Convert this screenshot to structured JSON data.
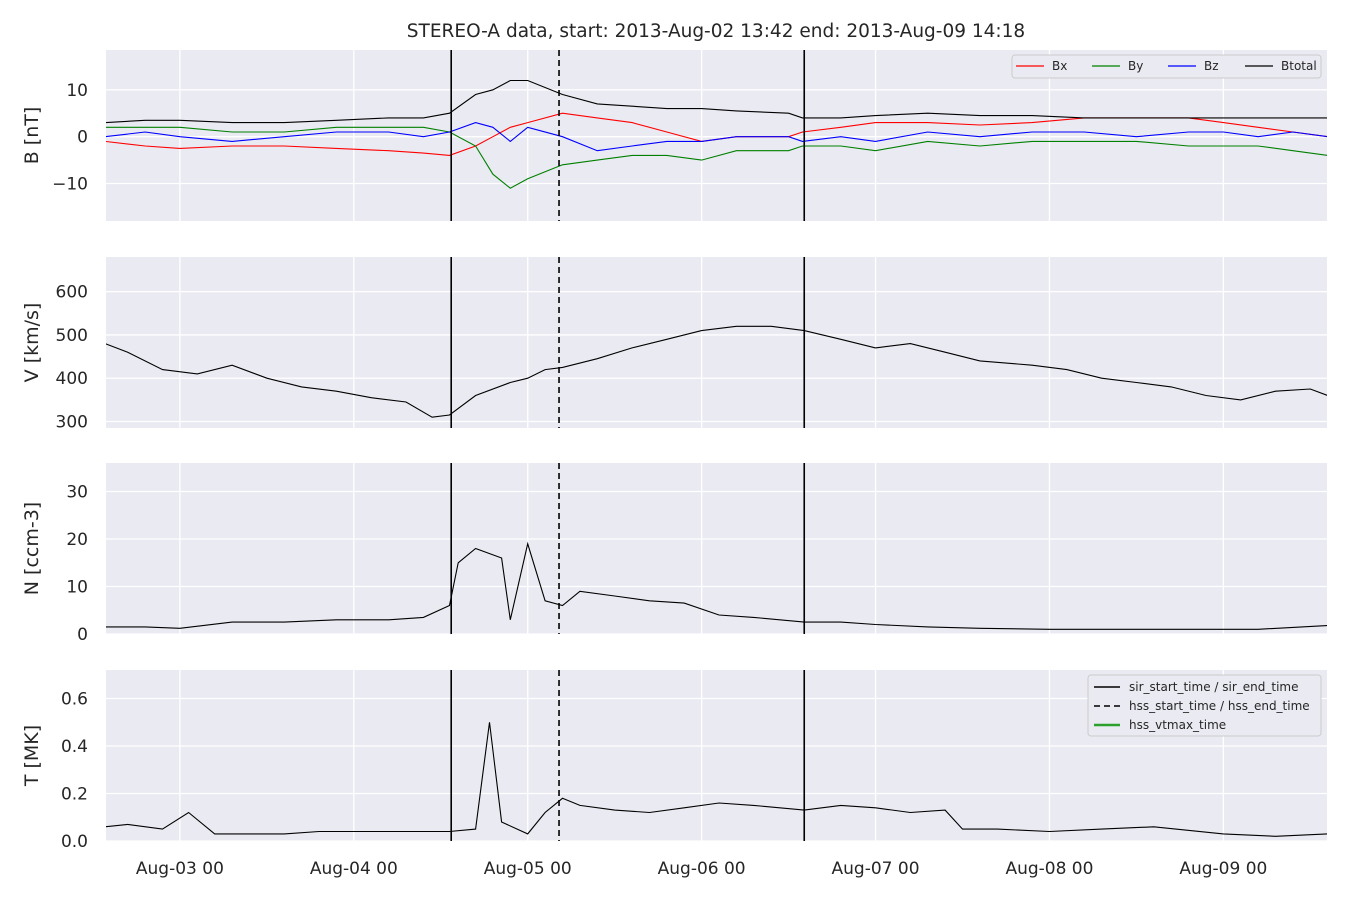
{
  "figure": {
    "title": "STEREO-A data, start: 2013-Aug-02 13:42  end: 2013-Aug-09 14:18"
  },
  "colors": {
    "panel_bg": "#eaeaf2",
    "grid": "#ffffff",
    "Bx": "#ff0000",
    "By": "#008000",
    "Bz": "#0000ff",
    "Btotal": "#000000",
    "hss_vtmax": "#2ca02c"
  },
  "chart_data": [
    {
      "type": "line",
      "ylabel": "B [nT]",
      "ylim": [
        -18,
        18.5
      ],
      "yticks": [
        -10,
        0,
        10
      ],
      "grid": true,
      "legend": "top-right",
      "x_axis": "time (day offset from 2013-Aug-02 00:00)",
      "series": [
        {
          "name": "Bx",
          "color": "#ff0000",
          "x": [
            0.57,
            0.8,
            1.0,
            1.3,
            1.6,
            1.9,
            2.2,
            2.4,
            2.55,
            2.7,
            2.8,
            2.9,
            3.0,
            3.2,
            3.4,
            3.6,
            3.8,
            4.0,
            4.2,
            4.5,
            4.58,
            4.8,
            5.0,
            5.3,
            5.6,
            5.9,
            6.2,
            6.5,
            6.8,
            7.0,
            7.2,
            7.4,
            7.6
          ],
          "y": [
            -1,
            -2,
            -2.5,
            -2,
            -2,
            -2.5,
            -3,
            -3.5,
            -4,
            -2,
            0,
            2,
            3,
            5,
            4,
            3,
            1,
            -1,
            0,
            0,
            1,
            2,
            3,
            3,
            2.5,
            3,
            4,
            4,
            4,
            3,
            2,
            1,
            0
          ]
        },
        {
          "name": "By",
          "color": "#008000",
          "x": [
            0.57,
            0.8,
            1.0,
            1.3,
            1.6,
            1.9,
            2.2,
            2.4,
            2.55,
            2.7,
            2.8,
            2.9,
            3.0,
            3.2,
            3.4,
            3.6,
            3.8,
            4.0,
            4.2,
            4.5,
            4.58,
            4.8,
            5.0,
            5.3,
            5.6,
            5.9,
            6.2,
            6.5,
            6.8,
            7.0,
            7.2,
            7.4,
            7.6
          ],
          "y": [
            2,
            2,
            2,
            1,
            1,
            2,
            2,
            2,
            1,
            -2,
            -8,
            -11,
            -9,
            -6,
            -5,
            -4,
            -4,
            -5,
            -3,
            -3,
            -2,
            -2,
            -3,
            -1,
            -2,
            -1,
            -1,
            -1,
            -2,
            -2,
            -2,
            -3,
            -4
          ]
        },
        {
          "name": "Bz",
          "color": "#0000ff",
          "x": [
            0.57,
            0.8,
            1.0,
            1.3,
            1.6,
            1.9,
            2.2,
            2.4,
            2.55,
            2.7,
            2.8,
            2.9,
            3.0,
            3.2,
            3.4,
            3.6,
            3.8,
            4.0,
            4.2,
            4.5,
            4.58,
            4.8,
            5.0,
            5.3,
            5.6,
            5.9,
            6.2,
            6.5,
            6.8,
            7.0,
            7.2,
            7.4,
            7.6
          ],
          "y": [
            0,
            1,
            0,
            -1,
            0,
            1,
            1,
            0,
            1,
            3,
            2,
            -1,
            2,
            0,
            -3,
            -2,
            -1,
            -1,
            0,
            0,
            -1,
            0,
            -1,
            1,
            0,
            1,
            1,
            0,
            1,
            1,
            0,
            1,
            0
          ]
        },
        {
          "name": "Btotal",
          "color": "#000000",
          "x": [
            0.57,
            0.8,
            1.0,
            1.3,
            1.6,
            1.9,
            2.2,
            2.4,
            2.55,
            2.7,
            2.8,
            2.9,
            3.0,
            3.2,
            3.4,
            3.6,
            3.8,
            4.0,
            4.2,
            4.5,
            4.58,
            4.8,
            5.0,
            5.3,
            5.6,
            5.9,
            6.2,
            6.5,
            6.8,
            7.0,
            7.2,
            7.4,
            7.6
          ],
          "y": [
            3,
            3.5,
            3.5,
            3,
            3,
            3.5,
            4,
            4,
            5,
            9,
            10,
            12,
            12,
            9,
            7,
            6.5,
            6,
            6,
            5.5,
            5,
            4,
            4,
            4.5,
            5,
            4.5,
            4.5,
            4,
            4,
            4,
            4,
            4,
            4,
            4
          ]
        }
      ],
      "vlines": [
        {
          "x": 2.56,
          "style": "solid"
        },
        {
          "x": 3.18,
          "style": "dashed"
        },
        {
          "x": 4.59,
          "style": "solid"
        }
      ]
    },
    {
      "type": "line",
      "ylabel": "V [km/s]",
      "ylim": [
        285,
        680
      ],
      "yticks": [
        300,
        400,
        500,
        600
      ],
      "grid": true,
      "series": [
        {
          "name": "",
          "color": "#000000",
          "x": [
            0.57,
            0.7,
            0.9,
            1.1,
            1.3,
            1.5,
            1.7,
            1.9,
            2.1,
            2.3,
            2.45,
            2.55,
            2.7,
            2.9,
            3.0,
            3.1,
            3.2,
            3.4,
            3.6,
            3.8,
            4.0,
            4.2,
            4.4,
            4.59,
            4.8,
            5.0,
            5.2,
            5.4,
            5.6,
            5.9,
            6.1,
            6.3,
            6.5,
            6.7,
            6.9,
            7.1,
            7.3,
            7.5,
            7.6
          ],
          "y": [
            480,
            460,
            420,
            410,
            430,
            400,
            380,
            370,
            355,
            345,
            310,
            315,
            360,
            390,
            400,
            420,
            425,
            445,
            470,
            490,
            510,
            520,
            520,
            510,
            490,
            470,
            480,
            460,
            440,
            430,
            420,
            400,
            390,
            380,
            360,
            350,
            370,
            375,
            360
          ]
        }
      ],
      "vlines": [
        {
          "x": 2.56,
          "style": "solid"
        },
        {
          "x": 3.18,
          "style": "dashed"
        },
        {
          "x": 4.59,
          "style": "solid"
        }
      ]
    },
    {
      "type": "line",
      "ylabel": "N [ccm-3]",
      "ylim": [
        0,
        36
      ],
      "yticks": [
        0,
        10,
        20,
        30
      ],
      "grid": true,
      "series": [
        {
          "name": "",
          "color": "#000000",
          "x": [
            0.57,
            0.8,
            1.0,
            1.3,
            1.6,
            1.9,
            2.2,
            2.4,
            2.55,
            2.6,
            2.7,
            2.85,
            2.9,
            3.0,
            3.1,
            3.2,
            3.3,
            3.5,
            3.7,
            3.9,
            4.1,
            4.3,
            4.59,
            4.8,
            5.0,
            5.3,
            5.6,
            6.0,
            6.4,
            6.8,
            7.2,
            7.6
          ],
          "y": [
            1.5,
            1.5,
            1.2,
            2.5,
            2.5,
            3,
            3,
            3.5,
            6,
            15,
            18,
            16,
            3,
            19,
            7,
            6,
            9,
            8,
            7,
            6.5,
            4,
            3.5,
            2.5,
            2.5,
            2,
            1.5,
            1.2,
            1,
            1,
            1,
            1,
            1.8
          ]
        }
      ],
      "vlines": [
        {
          "x": 2.56,
          "style": "solid"
        },
        {
          "x": 3.18,
          "style": "dashed"
        },
        {
          "x": 4.59,
          "style": "solid"
        }
      ]
    },
    {
      "type": "line",
      "ylabel": "T [MK]",
      "ylim": [
        0,
        0.72
      ],
      "yticks": [
        0.0,
        0.2,
        0.4,
        0.6
      ],
      "xticks": [
        "Aug-03 00",
        "Aug-04 00",
        "Aug-05 00",
        "Aug-06 00",
        "Aug-07 00",
        "Aug-08 00",
        "Aug-09 00"
      ],
      "xtick_values": [
        1,
        2,
        3,
        4,
        5,
        6,
        7
      ],
      "xlim": [
        0.575,
        7.596
      ],
      "grid": true,
      "legend": "top-right",
      "series": [
        {
          "name": "",
          "color": "#000000",
          "x": [
            0.57,
            0.7,
            0.9,
            1.05,
            1.2,
            1.4,
            1.6,
            1.8,
            2.0,
            2.2,
            2.4,
            2.55,
            2.7,
            2.78,
            2.85,
            3.0,
            3.1,
            3.2,
            3.3,
            3.5,
            3.7,
            3.9,
            4.1,
            4.3,
            4.59,
            4.8,
            5.0,
            5.2,
            5.4,
            5.5,
            5.7,
            6.0,
            6.3,
            6.6,
            7.0,
            7.3,
            7.6
          ],
          "y": [
            0.06,
            0.07,
            0.05,
            0.12,
            0.03,
            0.03,
            0.03,
            0.04,
            0.04,
            0.04,
            0.04,
            0.04,
            0.05,
            0.5,
            0.08,
            0.03,
            0.12,
            0.18,
            0.15,
            0.13,
            0.12,
            0.14,
            0.16,
            0.15,
            0.13,
            0.15,
            0.14,
            0.12,
            0.13,
            0.05,
            0.05,
            0.04,
            0.05,
            0.06,
            0.03,
            0.02,
            0.03
          ]
        }
      ],
      "vlines": [
        {
          "x": 2.56,
          "style": "solid"
        },
        {
          "x": 3.18,
          "style": "dashed"
        },
        {
          "x": 4.59,
          "style": "solid"
        }
      ],
      "legend_entries": [
        {
          "label": "sir_start_time / sir_end_time",
          "style": "solid",
          "color": "#000000"
        },
        {
          "label": "hss_start_time / hss_end_time",
          "style": "dashed",
          "color": "#000000"
        },
        {
          "label": "hss_vtmax_time",
          "style": "solid",
          "color": "#2ca02c"
        }
      ]
    }
  ]
}
